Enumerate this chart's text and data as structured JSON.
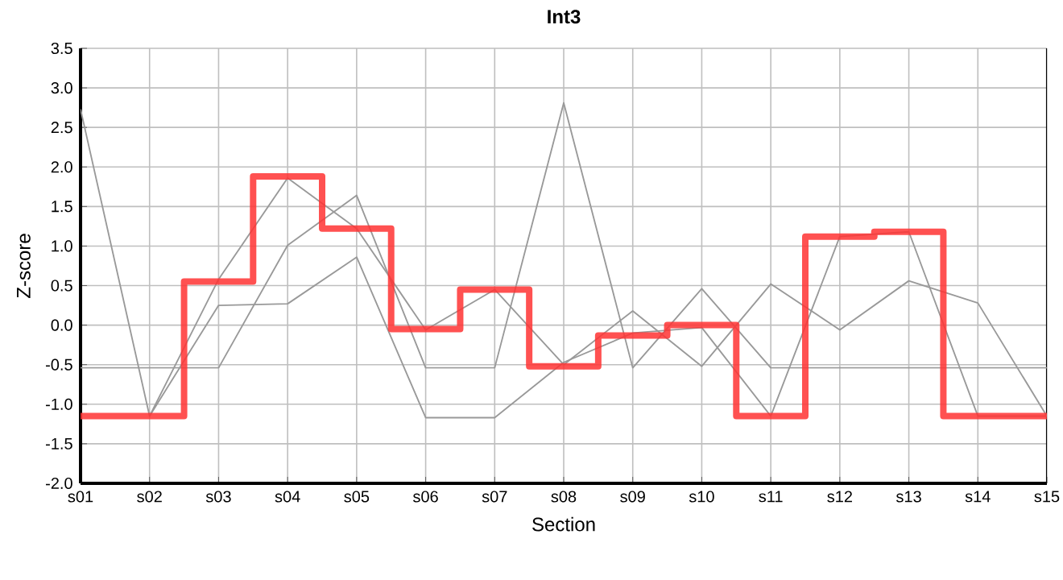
{
  "chart_data": {
    "type": "line",
    "title": "Int3",
    "xlabel": "Section",
    "ylabel": "Z-score",
    "categories": [
      "s01",
      "s02",
      "s03",
      "s04",
      "s05",
      "s06",
      "s07",
      "s08",
      "s09",
      "s10",
      "s11",
      "s12",
      "s13",
      "s14",
      "s15"
    ],
    "series": [
      {
        "color": "#999999",
        "values": [
          -0.54,
          -0.54,
          -0.54,
          1.01,
          1.64,
          -0.54,
          -0.54,
          2.81,
          -0.54,
          0.46,
          -0.54,
          -0.54,
          -0.54,
          -0.54,
          -0.54
        ]
      },
      {
        "color": "#999999",
        "values": [
          2.73,
          -1.15,
          0.58,
          1.86,
          1.22,
          -0.06,
          0.45,
          -0.5,
          0.18,
          -0.52,
          0.52,
          -0.06,
          0.56,
          0.28,
          -1.15
        ]
      },
      {
        "color": "#999999",
        "values": [
          null,
          -1.15,
          0.25,
          0.27,
          0.86,
          -1.17,
          -1.17,
          -0.47,
          -0.1,
          -0.03,
          -1.15,
          1.12,
          1.18,
          -1.15,
          -1.15
        ]
      },
      {
        "type": "step",
        "color": "#ff3333",
        "values": [
          -1.15,
          -1.15,
          0.55,
          1.88,
          1.22,
          -0.05,
          0.45,
          -0.52,
          -0.13,
          0.0,
          -1.15,
          1.12,
          1.18,
          -1.15,
          -1.15
        ]
      }
    ],
    "ylim": [
      -2.0,
      3.5
    ],
    "yticks": [
      {
        "value": -2.0,
        "label": "-2.0"
      },
      {
        "value": -1.5,
        "label": "-1.5"
      },
      {
        "value": -1.0,
        "label": "-1.0"
      },
      {
        "value": -0.5,
        "label": "-0.5"
      },
      {
        "value": 0.0,
        "label": "0.0"
      },
      {
        "value": 0.5,
        "label": "0.5"
      },
      {
        "value": 1.0,
        "label": "1.0"
      },
      {
        "value": 1.5,
        "label": "1.5"
      },
      {
        "value": 2.0,
        "label": "2.0"
      },
      {
        "value": 2.5,
        "label": "2.5"
      },
      {
        "value": 3.0,
        "label": "3.0"
      },
      {
        "value": 3.5,
        "label": "3.5"
      }
    ],
    "grid": true,
    "marker": "none",
    "line_style": "solid"
  }
}
